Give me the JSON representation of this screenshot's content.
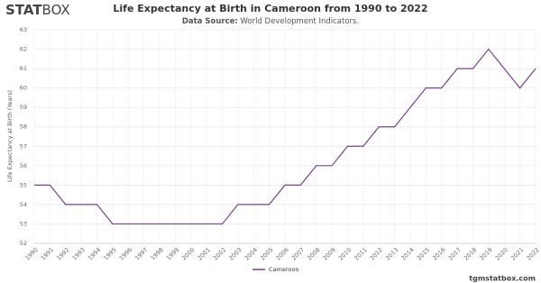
{
  "logo": {
    "bold": "STAT",
    "light": "BOX"
  },
  "footer": "tgmstatbox.com",
  "chart_data": {
    "type": "line",
    "title": "Life Expectancy at Birth in Cameroon from 1990 to 2022",
    "subtitle": {
      "label": "Data Source:",
      "text": "World Development Indicators."
    },
    "y_label": "Life Expectancy at Birth (Years)",
    "categories": [
      "1990",
      "1991",
      "1992",
      "1993",
      "1994",
      "1995",
      "1996",
      "1997",
      "1998",
      "1999",
      "2000",
      "2001",
      "2002",
      "2003",
      "2004",
      "2005",
      "2006",
      "2007",
      "2008",
      "2009",
      "2010",
      "2011",
      "2012",
      "2013",
      "2014",
      "2015",
      "2016",
      "2017",
      "2018",
      "2019",
      "2020",
      "2021",
      "2022"
    ],
    "series": [
      {
        "name": "Cameroon",
        "color": "#7b3f8c",
        "values": [
          55,
          55,
          54,
          54,
          54,
          53,
          53,
          53,
          53,
          53,
          53,
          53,
          53,
          54,
          54,
          54,
          55,
          55,
          56,
          56,
          57,
          57,
          58,
          58,
          59,
          60,
          60,
          61,
          61,
          62,
          61,
          60,
          61
        ]
      }
    ],
    "ylim": [
      52,
      63
    ],
    "yticks": [
      52,
      53,
      54,
      55,
      56,
      57,
      58,
      59,
      60,
      61,
      62,
      63
    ],
    "grid": true,
    "legend": "bottom"
  }
}
